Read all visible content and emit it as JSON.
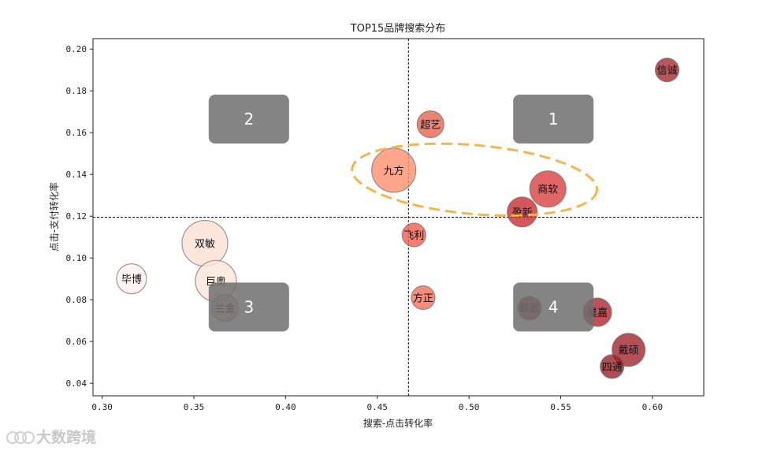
{
  "chart_data": {
    "type": "scatter",
    "title": "TOP15品牌搜索分布",
    "xlabel": "搜索-点击转化率",
    "ylabel": "点击-支付转化率",
    "xlim": [
      0.295,
      0.628
    ],
    "ylim": [
      0.034,
      0.205
    ],
    "xticks": [
      0.3,
      0.35,
      0.4,
      0.45,
      0.5,
      0.55,
      0.6
    ],
    "xtick_labels": [
      "0.30",
      "0.35",
      "0.40",
      "0.45",
      "0.50",
      "0.55",
      "0.60"
    ],
    "yticks": [
      0.04,
      0.06,
      0.08,
      0.1,
      0.12,
      0.14,
      0.16,
      0.18,
      0.2
    ],
    "ytick_labels": [
      "0.04",
      "0.06",
      "0.08",
      "0.10",
      "0.12",
      "0.14",
      "0.16",
      "0.18",
      "0.20"
    ],
    "reference_lines": {
      "x": 0.467,
      "y": 0.1195
    },
    "points": [
      {
        "name": "信诚",
        "x": 0.608,
        "y": 0.19,
        "size": 15,
        "color": "#a4262c"
      },
      {
        "name": "超艺",
        "x": 0.479,
        "y": 0.164,
        "size": 17,
        "color": "#e8604c"
      },
      {
        "name": "九方",
        "x": 0.459,
        "y": 0.142,
        "size": 28,
        "color": "#fc8d6b"
      },
      {
        "name": "商软",
        "x": 0.543,
        "y": 0.133,
        "size": 23,
        "color": "#d83c3c"
      },
      {
        "name": "盈新",
        "x": 0.529,
        "y": 0.122,
        "size": 19,
        "color": "#c8282c"
      },
      {
        "name": "飞利",
        "x": 0.47,
        "y": 0.111,
        "size": 15,
        "color": "#ef5b4a"
      },
      {
        "name": "双敏",
        "x": 0.356,
        "y": 0.107,
        "size": 29,
        "color": "#fde0d2"
      },
      {
        "name": "毕博",
        "x": 0.316,
        "y": 0.09,
        "size": 19,
        "color": "#fff1ec"
      },
      {
        "name": "巨奥",
        "x": 0.362,
        "y": 0.089,
        "size": 26,
        "color": "#fde4d8"
      },
      {
        "name": "方正",
        "x": 0.475,
        "y": 0.081,
        "size": 15,
        "color": "#f46d55"
      },
      {
        "name": "兰金",
        "x": 0.367,
        "y": 0.076,
        "size": 17,
        "color": "#d8b8a8"
      },
      {
        "name": "昂歌",
        "x": 0.533,
        "y": 0.076,
        "size": 15,
        "color": "#a8242a"
      },
      {
        "name": "昊嘉",
        "x": 0.57,
        "y": 0.074,
        "size": 18,
        "color": "#b0202a"
      },
      {
        "name": "戴硕",
        "x": 0.587,
        "y": 0.056,
        "size": 21,
        "color": "#a11f28"
      },
      {
        "name": "四通",
        "x": 0.578,
        "y": 0.048,
        "size": 15,
        "color": "#991c24"
      }
    ],
    "quadrant_labels": [
      {
        "label": "1",
        "x": 0.546,
        "y": 0.1665
      },
      {
        "label": "2",
        "x": 0.38,
        "y": 0.1665
      },
      {
        "label": "3",
        "x": 0.38,
        "y": 0.0765
      },
      {
        "label": "4",
        "x": 0.546,
        "y": 0.0765
      }
    ],
    "highlight_ellipse": {
      "cx": 0.503,
      "cy": 0.1375,
      "rx": 0.067,
      "ry": 0.0165,
      "angle_deg": 5,
      "color": "#f3b64f"
    }
  },
  "watermark": {
    "text": "大数跨境"
  }
}
